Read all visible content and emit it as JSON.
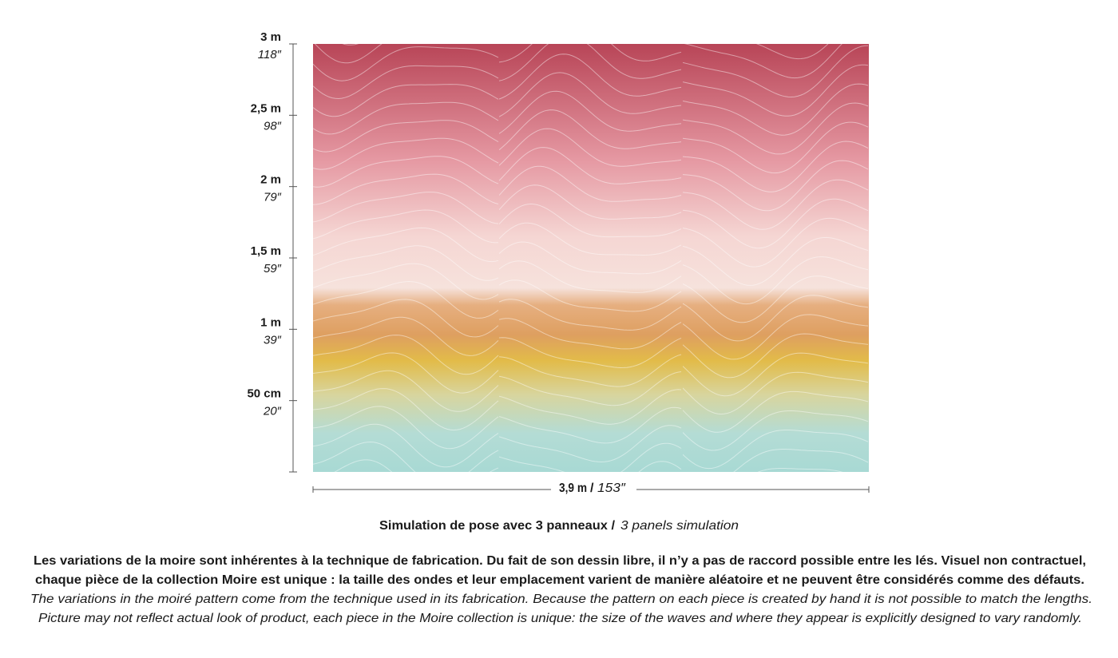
{
  "ruler": [
    {
      "metric": "3 m",
      "imperial": "118″"
    },
    {
      "metric": "2,5 m",
      "imperial": "98″"
    },
    {
      "metric": "2 m",
      "imperial": "79″"
    },
    {
      "metric": "1,5 m",
      "imperial": "59″"
    },
    {
      "metric": "1 m",
      "imperial": "39″"
    },
    {
      "metric": "50 cm",
      "imperial": "20″"
    }
  ],
  "width_label": {
    "metric": "3,9 m",
    "separator": "/",
    "imperial": "153″"
  },
  "caption": {
    "fr": "Simulation de pose avec 3 panneaux /",
    "en": "3 panels simulation"
  },
  "notes": [
    "Les variations de la moire sont inhérentes à la technique de fabrication. Du fait de son dessin libre, il n’y a pas de raccord possible entre les lés. Visuel non contractuel,",
    "chaque pièce de la collection Moire est unique : la taille des ondes et leur emplacement varient de manière aléatoire et ne peuvent être considérés comme des défauts.",
    "The variations in the moiré pattern come from the technique used in its fabrication. Because the pattern on each piece is created by hand it is not possible to match the lengths.",
    "Picture may not reflect actual look of product, each piece in the Moire collection is unique: the size of the waves and where they appear is explicitly designed to vary randomly."
  ]
}
